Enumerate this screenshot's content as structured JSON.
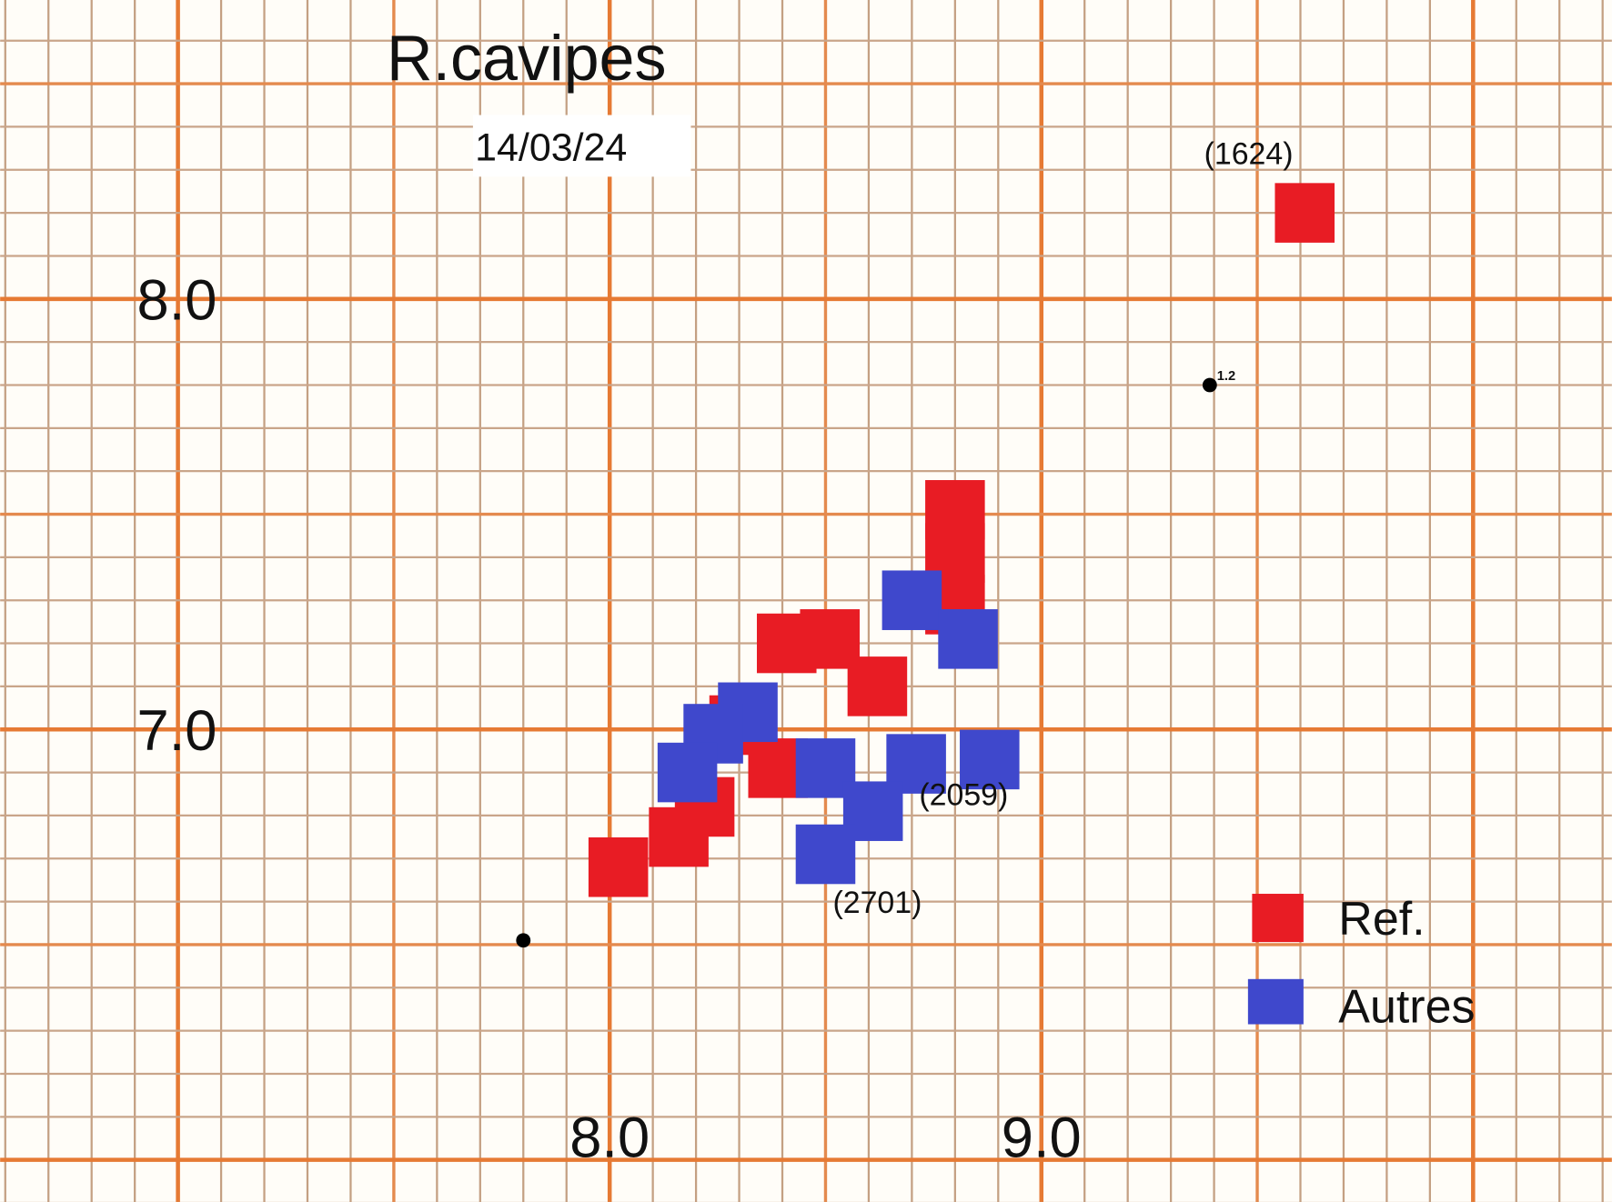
{
  "chart_data": {
    "type": "scatter",
    "title": "R.cavipes",
    "subtitle": "14/03/24",
    "xlabel": "",
    "ylabel": "",
    "xlim": [
      6.59,
      10.32
    ],
    "ylim": [
      5.9,
      8.7
    ],
    "x_ticks": [
      {
        "value": 8.0,
        "label": "8.0"
      },
      {
        "value": 9.0,
        "label": "9.0"
      }
    ],
    "y_ticks": [
      {
        "value": 8.0,
        "label": "8.0"
      },
      {
        "value": 7.0,
        "label": "7.0"
      }
    ],
    "grid": "graph-paper (minor 0.1, medium 0.5, major 1.0)",
    "legend_placement": "bottom-right",
    "marker": "square",
    "series": [
      {
        "name": "Ref.",
        "color": "#e81c24",
        "points": [
          [
            8.8,
            7.51
          ],
          [
            8.8,
            7.41
          ],
          [
            8.8,
            7.29
          ],
          [
            8.41,
            7.2
          ],
          [
            8.51,
            7.21
          ],
          [
            8.62,
            7.1
          ],
          [
            8.3,
            7.01
          ],
          [
            8.39,
            6.91
          ],
          [
            8.22,
            6.82
          ],
          [
            8.16,
            6.75
          ],
          [
            8.02,
            6.68
          ],
          [
            9.61,
            8.2
          ]
        ]
      },
      {
        "name": "Autres",
        "color": "#3f48cc",
        "points": [
          [
            8.7,
            7.3
          ],
          [
            8.83,
            7.21
          ],
          [
            8.32,
            7.04
          ],
          [
            8.24,
            6.99
          ],
          [
            8.18,
            6.9
          ],
          [
            8.5,
            6.91
          ],
          [
            8.71,
            6.92
          ],
          [
            8.88,
            6.93
          ],
          [
            8.61,
            6.81
          ],
          [
            8.5,
            6.71
          ]
        ]
      }
    ],
    "annotations": [
      {
        "text": "(1624)",
        "x": 9.48,
        "y": 8.34
      },
      {
        "text": "(2059)",
        "x": 8.82,
        "y": 6.85
      },
      {
        "text": "(2701)",
        "x": 8.62,
        "y": 6.6
      }
    ],
    "dots": [
      {
        "x": 9.39,
        "y": 7.8,
        "label": "1.2"
      },
      {
        "x": 7.8,
        "y": 6.51,
        "label": ""
      }
    ]
  }
}
